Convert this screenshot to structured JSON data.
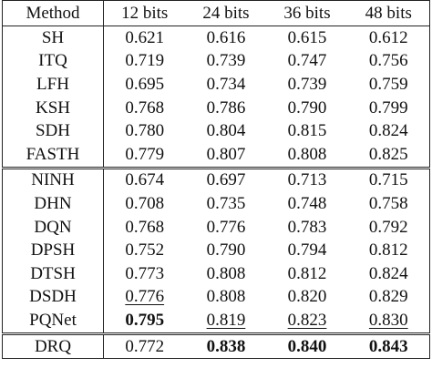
{
  "table": {
    "header": [
      "Method",
      "12 bits",
      "24 bits",
      "36 bits",
      "48 bits"
    ],
    "sections": [
      [
        [
          "SH",
          "0.621",
          "0.616",
          "0.615",
          "0.612"
        ],
        [
          "ITQ",
          "0.719",
          "0.739",
          "0.747",
          "0.756"
        ],
        [
          "LFH",
          "0.695",
          "0.734",
          "0.739",
          "0.759"
        ],
        [
          "KSH",
          "0.768",
          "0.786",
          "0.790",
          "0.799"
        ],
        [
          "SDH",
          "0.780",
          "0.804",
          "0.815",
          "0.824"
        ],
        [
          "FASTH",
          "0.779",
          "0.807",
          "0.808",
          "0.825"
        ]
      ],
      [
        [
          "NINH",
          "0.674",
          "0.697",
          "0.713",
          "0.715"
        ],
        [
          "DHN",
          "0.708",
          "0.735",
          "0.748",
          "0.758"
        ],
        [
          "DQN",
          "0.768",
          "0.776",
          "0.783",
          "0.792"
        ],
        [
          "DPSH",
          "0.752",
          "0.790",
          "0.794",
          "0.812"
        ],
        [
          "DTSH",
          "0.773",
          "0.808",
          "0.812",
          "0.824"
        ],
        [
          "DSDH",
          "0.776",
          "0.808",
          "0.820",
          "0.829"
        ],
        [
          "PQNet",
          "0.795",
          "0.819",
          "0.823",
          "0.830"
        ]
      ],
      [
        [
          "DRQ",
          "0.772",
          "0.838",
          "0.840",
          "0.843"
        ]
      ]
    ]
  }
}
